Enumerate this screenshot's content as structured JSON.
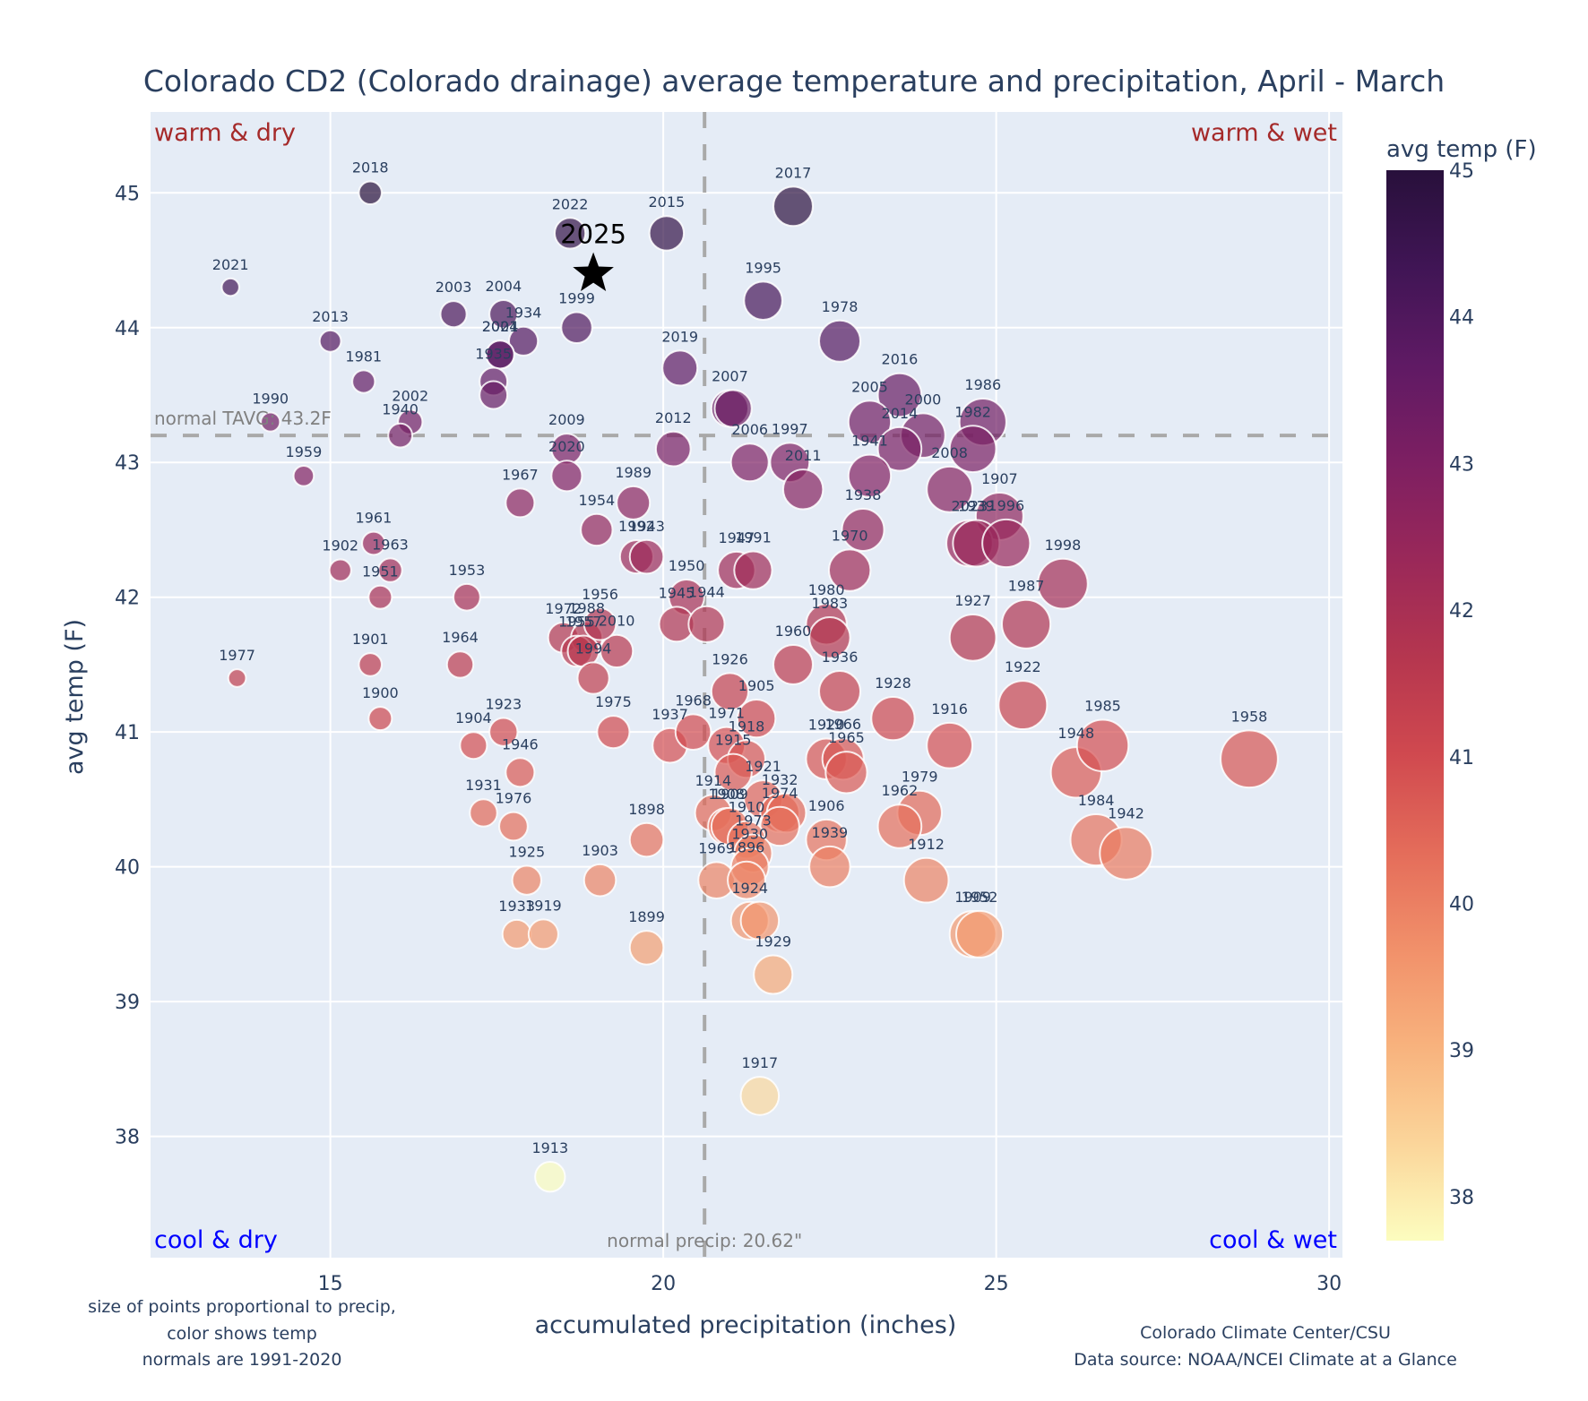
{
  "chart_data": {
    "type": "scatter",
    "title": "Colorado CD2 (Colorado drainage) average temperature and precipitation, April - March",
    "xlabel": "accumulated precipitation (inches)",
    "ylabel": "avg temp (F)",
    "xlim": [
      12.3,
      30.2
    ],
    "ylim": [
      37.1,
      45.6
    ],
    "xticks": [
      15,
      20,
      25,
      30
    ],
    "yticks": [
      38,
      39,
      40,
      41,
      42,
      43,
      44,
      45
    ],
    "grid": true,
    "colorbar": {
      "title": "avg temp (F)",
      "range": [
        37.7,
        45.0
      ],
      "ticks": [
        38,
        39,
        40,
        41,
        42,
        43,
        44,
        45
      ],
      "colorscale": [
        "#fcfdbf",
        "#fbd59a",
        "#f8b27d",
        "#f1906a",
        "#e46c5a",
        "#d0494f",
        "#b5364f",
        "#9a2859",
        "#7d1f62",
        "#5f1a64",
        "#401555",
        "#28103b"
      ]
    },
    "normals": {
      "temp": 43.2,
      "temp_label": "normal TAVG: 43.2F",
      "precip": 20.62,
      "precip_label": "normal precip: 20.62\""
    },
    "quadrant_labels": {
      "top_left": "warm & dry",
      "top_right": "warm & wet",
      "bottom_left": "cool & dry",
      "bottom_right": "cool & wet"
    },
    "highlight": {
      "year": "2025",
      "precip": 18.95,
      "temp": 44.4,
      "marker": "star"
    },
    "points": [
      {
        "year": "2018",
        "precip": 15.6,
        "temp": 45.0
      },
      {
        "year": "2021",
        "precip": 13.5,
        "temp": 44.3
      },
      {
        "year": "2022",
        "precip": 18.6,
        "temp": 44.7
      },
      {
        "year": "2015",
        "precip": 20.05,
        "temp": 44.7
      },
      {
        "year": "2017",
        "precip": 21.95,
        "temp": 44.9
      },
      {
        "year": "1995",
        "precip": 21.5,
        "temp": 44.2
      },
      {
        "year": "1978",
        "precip": 22.65,
        "temp": 43.9
      },
      {
        "year": "2003",
        "precip": 16.85,
        "temp": 44.1
      },
      {
        "year": "2004",
        "precip": 17.6,
        "temp": 44.1
      },
      {
        "year": "1934",
        "precip": 17.9,
        "temp": 43.9
      },
      {
        "year": "2024",
        "precip": 17.55,
        "temp": 43.8
      },
      {
        "year": "1999",
        "precip": 18.7,
        "temp": 44.0
      },
      {
        "year": "2013",
        "precip": 15.0,
        "temp": 43.9
      },
      {
        "year": "1981",
        "precip": 15.5,
        "temp": 43.6
      },
      {
        "year": "2001",
        "precip": 17.55,
        "temp": 43.8
      },
      {
        "year": "1935",
        "precip": 17.45,
        "temp": 43.6
      },
      {
        "year": "1933b",
        "label": "",
        "precip": 17.45,
        "temp": 43.5
      },
      {
        "year": "2019",
        "precip": 20.25,
        "temp": 43.7
      },
      {
        "year": "1990",
        "precip": 14.1,
        "temp": 43.3
      },
      {
        "year": "2002",
        "precip": 16.2,
        "temp": 43.3
      },
      {
        "year": "1940",
        "precip": 16.05,
        "temp": 43.2
      },
      {
        "year": "1959",
        "precip": 14.6,
        "temp": 42.9
      },
      {
        "year": "2009",
        "precip": 18.55,
        "temp": 43.1
      },
      {
        "year": "2020",
        "precip": 18.55,
        "temp": 42.9
      },
      {
        "year": "2012",
        "precip": 20.15,
        "temp": 43.1
      },
      {
        "year": "2007",
        "precip": 21.0,
        "temp": 43.4
      },
      {
        "year": "1901b",
        "label": "",
        "precip": 21.05,
        "temp": 43.4
      },
      {
        "year": "2006",
        "precip": 21.3,
        "temp": 43.0
      },
      {
        "year": "1997",
        "precip": 21.9,
        "temp": 43.0
      },
      {
        "year": "2011",
        "precip": 22.1,
        "temp": 42.8
      },
      {
        "year": "2016",
        "precip": 23.55,
        "temp": 43.5
      },
      {
        "year": "2005",
        "precip": 23.1,
        "temp": 43.3
      },
      {
        "year": "2000",
        "precip": 23.9,
        "temp": 43.2
      },
      {
        "year": "2014",
        "precip": 23.55,
        "temp": 43.1
      },
      {
        "year": "1941",
        "precip": 23.1,
        "temp": 42.9
      },
      {
        "year": "1986",
        "precip": 24.8,
        "temp": 43.3
      },
      {
        "year": "1982",
        "precip": 24.65,
        "temp": 43.1
      },
      {
        "year": "2008",
        "precip": 24.3,
        "temp": 42.8
      },
      {
        "year": "1938",
        "precip": 23.0,
        "temp": 42.5
      },
      {
        "year": "1970",
        "precip": 22.8,
        "temp": 42.2
      },
      {
        "year": "1907",
        "precip": 25.05,
        "temp": 42.6
      },
      {
        "year": "2023",
        "precip": 24.6,
        "temp": 42.4
      },
      {
        "year": "1939b",
        "label": "1939",
        "precip": 24.7,
        "temp": 42.4
      },
      {
        "year": "1996",
        "precip": 25.15,
        "temp": 42.4
      },
      {
        "year": "1998",
        "precip": 26.0,
        "temp": 42.1
      },
      {
        "year": "1987",
        "precip": 25.45,
        "temp": 41.8
      },
      {
        "year": "1927",
        "precip": 24.65,
        "temp": 41.7
      },
      {
        "year": "1922",
        "precip": 25.4,
        "temp": 41.2
      },
      {
        "year": "1967",
        "precip": 17.85,
        "temp": 42.7
      },
      {
        "year": "1954",
        "precip": 19.0,
        "temp": 42.5
      },
      {
        "year": "1989",
        "precip": 19.55,
        "temp": 42.7
      },
      {
        "year": "1992",
        "precip": 19.6,
        "temp": 42.3
      },
      {
        "year": "1943",
        "precip": 19.75,
        "temp": 42.3
      },
      {
        "year": "1961",
        "precip": 15.65,
        "temp": 42.4
      },
      {
        "year": "1902",
        "precip": 15.15,
        "temp": 42.2
      },
      {
        "year": "1963",
        "precip": 15.9,
        "temp": 42.2
      },
      {
        "year": "1951",
        "precip": 15.75,
        "temp": 42.0
      },
      {
        "year": "1953",
        "precip": 17.05,
        "temp": 42.0
      },
      {
        "year": "1977",
        "precip": 13.6,
        "temp": 41.4
      },
      {
        "year": "1901",
        "precip": 15.6,
        "temp": 41.5
      },
      {
        "year": "1964",
        "precip": 16.95,
        "temp": 41.5
      },
      {
        "year": "1900",
        "precip": 15.75,
        "temp": 41.1
      },
      {
        "year": "1950",
        "precip": 20.35,
        "temp": 42.0
      },
      {
        "year": "1945",
        "precip": 20.2,
        "temp": 41.8
      },
      {
        "year": "1944",
        "precip": 20.65,
        "temp": 41.8
      },
      {
        "year": "1947",
        "precip": 21.1,
        "temp": 42.2
      },
      {
        "year": "1991",
        "precip": 21.35,
        "temp": 42.2
      },
      {
        "year": "1972",
        "precip": 18.5,
        "temp": 41.7
      },
      {
        "year": "1988",
        "precip": 18.85,
        "temp": 41.7
      },
      {
        "year": "1955",
        "precip": 18.7,
        "temp": 41.6
      },
      {
        "year": "1957",
        "precip": 18.8,
        "temp": 41.6
      },
      {
        "year": "2010",
        "precip": 19.3,
        "temp": 41.6
      },
      {
        "year": "1956",
        "precip": 19.05,
        "temp": 41.8
      },
      {
        "year": "1994",
        "precip": 18.95,
        "temp": 41.4
      },
      {
        "year": "1975",
        "precip": 19.25,
        "temp": 41.0
      },
      {
        "year": "1980",
        "precip": 22.45,
        "temp": 41.8
      },
      {
        "year": "1983",
        "precip": 22.5,
        "temp": 41.7
      },
      {
        "year": "1960",
        "precip": 21.95,
        "temp": 41.5
      },
      {
        "year": "1936",
        "precip": 22.65,
        "temp": 41.3
      },
      {
        "year": "1926",
        "precip": 21.0,
        "temp": 41.3
      },
      {
        "year": "1905",
        "precip": 21.4,
        "temp": 41.1
      },
      {
        "year": "1928",
        "precip": 23.45,
        "temp": 41.1
      },
      {
        "year": "1916",
        "precip": 24.3,
        "temp": 40.9
      },
      {
        "year": "1937",
        "precip": 20.1,
        "temp": 40.9
      },
      {
        "year": "1968",
        "precip": 20.45,
        "temp": 41.0
      },
      {
        "year": "1971",
        "precip": 20.95,
        "temp": 40.9
      },
      {
        "year": "1918",
        "precip": 21.25,
        "temp": 40.8
      },
      {
        "year": "1915",
        "precip": 21.05,
        "temp": 40.7
      },
      {
        "year": "1920",
        "precip": 22.45,
        "temp": 40.8
      },
      {
        "year": "1966",
        "precip": 22.7,
        "temp": 40.8
      },
      {
        "year": "1965",
        "precip": 22.75,
        "temp": 40.7
      },
      {
        "year": "1921",
        "precip": 21.5,
        "temp": 40.5
      },
      {
        "year": "1932",
        "precip": 21.75,
        "temp": 40.4
      },
      {
        "year": "1927b",
        "label": "",
        "precip": 21.85,
        "temp": 40.4
      },
      {
        "year": "1914",
        "precip": 20.75,
        "temp": 40.4
      },
      {
        "year": "1908",
        "precip": 20.95,
        "temp": 40.3
      },
      {
        "year": "1909",
        "precip": 21.0,
        "temp": 40.3
      },
      {
        "year": "1974",
        "precip": 21.75,
        "temp": 40.3
      },
      {
        "year": "1910",
        "precip": 21.25,
        "temp": 40.2
      },
      {
        "year": "1973",
        "precip": 21.35,
        "temp": 40.1
      },
      {
        "year": "1906",
        "precip": 22.45,
        "temp": 40.2
      },
      {
        "year": "1939",
        "precip": 22.5,
        "temp": 40.0
      },
      {
        "year": "1979",
        "precip": 23.85,
        "temp": 40.4
      },
      {
        "year": "1962",
        "precip": 23.55,
        "temp": 40.3
      },
      {
        "year": "1912",
        "precip": 23.95,
        "temp": 39.9
      },
      {
        "year": "1948",
        "precip": 26.2,
        "temp": 40.7
      },
      {
        "year": "1985",
        "precip": 26.6,
        "temp": 40.9
      },
      {
        "year": "1958",
        "precip": 28.8,
        "temp": 40.8
      },
      {
        "year": "1984",
        "precip": 26.5,
        "temp": 40.2
      },
      {
        "year": "1942",
        "precip": 26.95,
        "temp": 40.1
      },
      {
        "year": "1904",
        "precip": 17.15,
        "temp": 40.9
      },
      {
        "year": "1923",
        "precip": 17.6,
        "temp": 41.0
      },
      {
        "year": "1946",
        "precip": 17.85,
        "temp": 40.7
      },
      {
        "year": "1931",
        "precip": 17.3,
        "temp": 40.4
      },
      {
        "year": "1976",
        "precip": 17.75,
        "temp": 40.3
      },
      {
        "year": "1925",
        "precip": 17.95,
        "temp": 39.9
      },
      {
        "year": "1933",
        "precip": 17.8,
        "temp": 39.5
      },
      {
        "year": "1919",
        "precip": 18.2,
        "temp": 39.5
      },
      {
        "year": "1903",
        "precip": 19.05,
        "temp": 39.9
      },
      {
        "year": "1898",
        "precip": 19.75,
        "temp": 40.2
      },
      {
        "year": "1899",
        "precip": 19.75,
        "temp": 39.4
      },
      {
        "year": "1969",
        "precip": 20.8,
        "temp": 39.9
      },
      {
        "year": "1930",
        "precip": 21.3,
        "temp": 40.0
      },
      {
        "year": "1896",
        "precip": 21.25,
        "temp": 39.9
      },
      {
        "year": "1924",
        "precip": 21.3,
        "temp": 39.6
      },
      {
        "year": "1952b",
        "label": "",
        "precip": 21.45,
        "temp": 39.6
      },
      {
        "year": "1929",
        "precip": 21.65,
        "temp": 39.2
      },
      {
        "year": "1909b",
        "label": "1909",
        "precip": 24.65,
        "temp": 39.5
      },
      {
        "year": "1952",
        "precip": 24.75,
        "temp": 39.5
      },
      {
        "year": "1917",
        "precip": 21.45,
        "temp": 38.3
      },
      {
        "year": "1913",
        "precip": 18.3,
        "temp": 37.7
      }
    ]
  },
  "annotations": {
    "notes_left": [
      "size of points proportional to precip,",
      "color shows temp",
      "normals are 1991-2020"
    ],
    "notes_right": [
      "Colorado Climate Center/CSU",
      "Data source: NOAA/NCEI Climate at a Glance"
    ]
  }
}
